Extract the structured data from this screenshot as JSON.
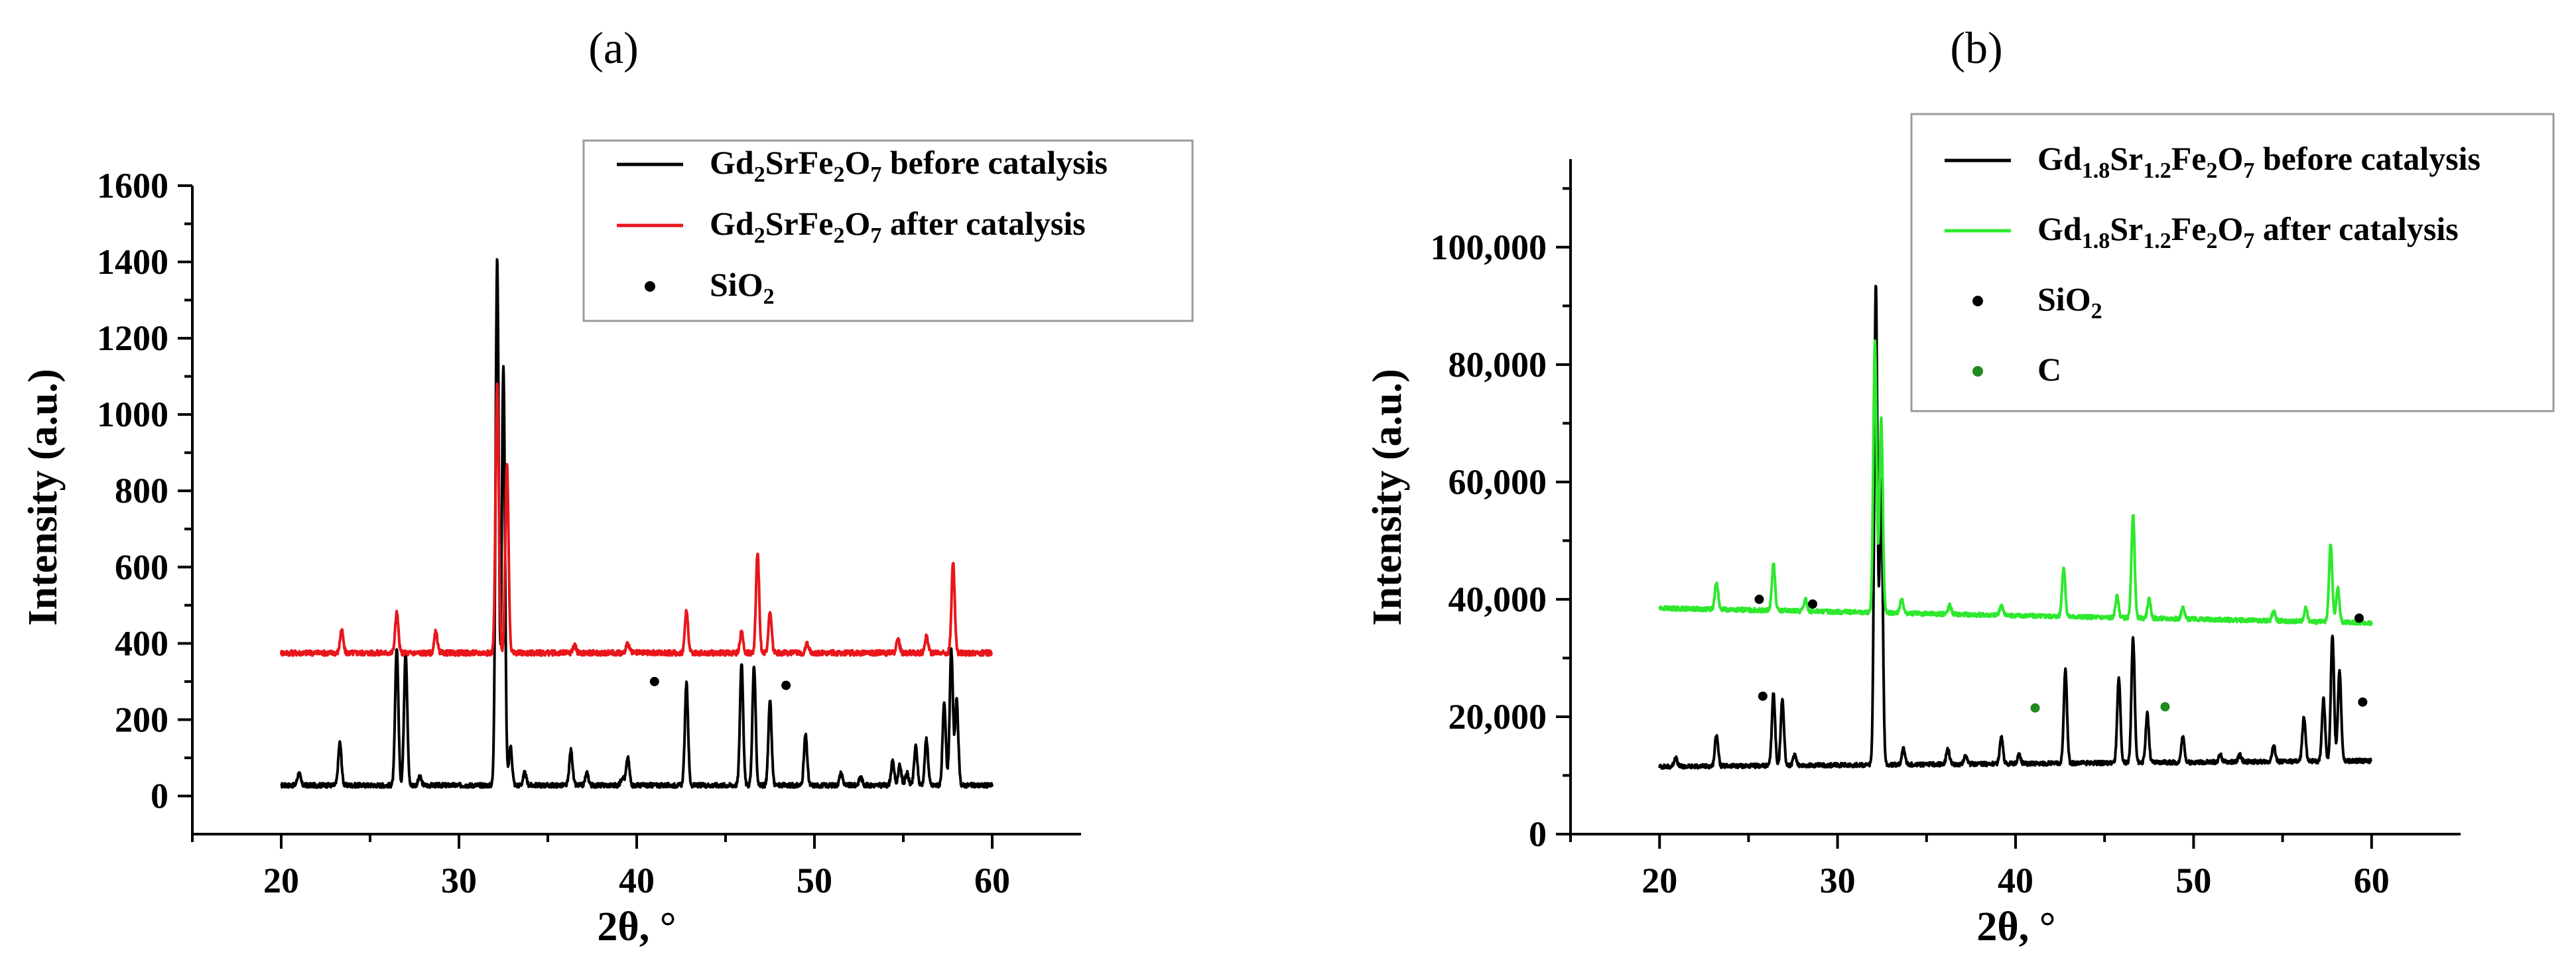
{
  "chart_data": [
    {
      "type": "line",
      "panel_label": "(a)",
      "xlabel": "2θ, °",
      "ylabel": "Intensity (a.u.)",
      "xlim": [
        15,
        65
      ],
      "ylim": [
        -100,
        1600
      ],
      "xticks": [
        20,
        30,
        40,
        50,
        60
      ],
      "yticks": [
        0,
        200,
        400,
        600,
        800,
        1000,
        1200,
        1400,
        1600
      ],
      "tick_labels_y": [
        "0",
        "200",
        "400",
        "600",
        "800",
        "1000",
        "1200",
        "1400",
        "1600"
      ],
      "tick_labels_x": [
        "20",
        "30",
        "40",
        "50",
        "60"
      ],
      "colors": {
        "before": "#000000",
        "after": "#e8161b",
        "dot": "#000000"
      },
      "legend": {
        "position": "top-right",
        "entries": [
          {
            "kind": "line",
            "color": "#000000",
            "base": "Gd",
            "sub1": "2",
            "mid": "SrFe",
            "sub2": "2",
            "tail": "O",
            "sub3": "7",
            "suffix": " before catalysis"
          },
          {
            "kind": "line",
            "color": "#e8161b",
            "base": "Gd",
            "sub1": "2",
            "mid": "SrFe",
            "sub2": "2",
            "tail": "O",
            "sub3": "7",
            "suffix": " after catalysis"
          },
          {
            "kind": "dot",
            "color": "#000000",
            "base": "SiO",
            "sub1": "2"
          }
        ]
      },
      "series": [
        {
          "name": "Gd2SrFe2O7 before catalysis",
          "color": "#000000",
          "baseline": 28,
          "noise": 6,
          "peaks": [
            [
              21.0,
              60
            ],
            [
              23.3,
              140
            ],
            [
              26.5,
              390
            ],
            [
              27.0,
              380
            ],
            [
              27.8,
              50
            ],
            [
              32.15,
              1410
            ],
            [
              32.5,
              1130
            ],
            [
              32.9,
              130
            ],
            [
              33.7,
              60
            ],
            [
              36.3,
              120
            ],
            [
              37.2,
              60
            ],
            [
              39.2,
              50
            ],
            [
              39.5,
              100
            ],
            [
              42.8,
              295
            ],
            [
              45.9,
              350
            ],
            [
              46.6,
              340
            ],
            [
              47.5,
              250
            ],
            [
              49.5,
              160
            ],
            [
              51.5,
              60
            ],
            [
              52.6,
              50
            ],
            [
              54.4,
              90
            ],
            [
              54.8,
              80
            ],
            [
              55.2,
              60
            ],
            [
              55.7,
              130
            ],
            [
              56.3,
              150
            ],
            [
              57.3,
              240
            ],
            [
              57.7,
              380
            ],
            [
              58.0,
              250
            ]
          ]
        },
        {
          "name": "Gd2SrFe2O7 after catalysis",
          "color": "#e8161b",
          "baseline": 375,
          "noise": 7,
          "peaks": [
            [
              23.4,
              435
            ],
            [
              26.5,
              480
            ],
            [
              28.7,
              430
            ],
            [
              32.15,
              1080
            ],
            [
              32.7,
              870
            ],
            [
              36.5,
              395
            ],
            [
              39.5,
              400
            ],
            [
              42.8,
              485
            ],
            [
              45.9,
              430
            ],
            [
              46.8,
              640
            ],
            [
              47.5,
              480
            ],
            [
              49.6,
              400
            ],
            [
              54.7,
              410
            ],
            [
              56.3,
              420
            ],
            [
              57.8,
              610
            ]
          ]
        }
      ],
      "markers": [
        {
          "x": 41.0,
          "y": 300
        },
        {
          "x": 48.4,
          "y": 290
        }
      ]
    },
    {
      "type": "line",
      "panel_label": "(b)",
      "xlabel": "2θ, °",
      "ylabel": "Intensity (a.u.)",
      "xlim": [
        15,
        65
      ],
      "ylim": [
        0,
        115000
      ],
      "xticks": [
        20,
        30,
        40,
        50,
        60
      ],
      "yticks": [
        0,
        20000,
        40000,
        60000,
        80000,
        100000
      ],
      "tick_labels_y": [
        "0",
        "20,000",
        "40,000",
        "60,000",
        "80,000",
        "100,000"
      ],
      "tick_labels_x": [
        "20",
        "30",
        "40",
        "50",
        "60"
      ],
      "colors": {
        "before": "#000000",
        "after": "#2ee82e",
        "dot_sio2": "#000000",
        "dot_c": "#1f8a1f"
      },
      "legend": {
        "position": "top-right",
        "entries": [
          {
            "kind": "line",
            "color": "#000000",
            "base": "Gd",
            "sub1": "1.8",
            "mid": "Sr",
            "sub2": "1.2",
            "tail": "Fe",
            "sub3": "2",
            "tail2": "O",
            "sub4": "7",
            "suffix": " before catalysis"
          },
          {
            "kind": "line",
            "color": "#2ee82e",
            "base": "Gd",
            "sub1": "1.8",
            "mid": "Sr",
            "sub2": "1.2",
            "tail": "Fe",
            "sub3": "2",
            "tail2": "O",
            "sub4": "7",
            "suffix": " after catalysis"
          },
          {
            "kind": "dot",
            "color": "#000000",
            "base": "SiO",
            "sub1": "2"
          },
          {
            "kind": "dot",
            "color": "#1f8a1f",
            "base": "C"
          }
        ]
      },
      "series": [
        {
          "name": "Gd1.8Sr1.2Fe2O7 before catalysis",
          "color": "#000000",
          "baseline": 11500,
          "baseline_end": 12500,
          "noise": 350,
          "peaks": [
            [
              20.9,
              13000
            ],
            [
              23.2,
              17000
            ],
            [
              26.4,
              24000
            ],
            [
              26.9,
              23000
            ],
            [
              27.6,
              13500
            ],
            [
              32.15,
              93500
            ],
            [
              32.45,
              60000
            ],
            [
              33.7,
              14500
            ],
            [
              36.2,
              14500
            ],
            [
              37.2,
              13500
            ],
            [
              39.2,
              16500
            ],
            [
              40.2,
              13500
            ],
            [
              42.8,
              28000
            ],
            [
              45.8,
              26500
            ],
            [
              46.6,
              33500
            ],
            [
              47.4,
              20500
            ],
            [
              49.4,
              16500
            ],
            [
              51.5,
              13500
            ],
            [
              52.6,
              13500
            ],
            [
              54.5,
              15000
            ],
            [
              56.2,
              20000
            ],
            [
              57.3,
              23000
            ],
            [
              57.8,
              34000
            ],
            [
              58.2,
              28000
            ]
          ]
        },
        {
          "name": "Gd1.8Sr1.2Fe2O7 after catalysis",
          "color": "#2ee82e",
          "baseline": 38500,
          "baseline_end": 36000,
          "noise": 350,
          "peaks": [
            [
              23.2,
              43000
            ],
            [
              26.4,
              46000
            ],
            [
              28.2,
              40000
            ],
            [
              32.1,
              84000
            ],
            [
              32.45,
              71000
            ],
            [
              33.6,
              40000
            ],
            [
              36.3,
              39000
            ],
            [
              39.2,
              39000
            ],
            [
              42.7,
              45500
            ],
            [
              45.7,
              40500
            ],
            [
              46.6,
              54500
            ],
            [
              47.5,
              40000
            ],
            [
              49.4,
              38500
            ],
            [
              54.5,
              38000
            ],
            [
              56.3,
              38500
            ],
            [
              57.7,
              49500
            ],
            [
              58.1,
              42000
            ]
          ]
        }
      ],
      "markers": [
        {
          "x": 25.6,
          "y": 40000,
          "color": "#000000"
        },
        {
          "x": 28.6,
          "y": 39200,
          "color": "#000000"
        },
        {
          "x": 59.3,
          "y": 36800,
          "color": "#000000"
        },
        {
          "x": 25.8,
          "y": 23500,
          "color": "#000000"
        },
        {
          "x": 59.5,
          "y": 22500,
          "color": "#000000"
        },
        {
          "x": 41.1,
          "y": 21500,
          "color": "#1f8a1f"
        },
        {
          "x": 48.4,
          "y": 21700,
          "color": "#1f8a1f"
        }
      ]
    }
  ]
}
